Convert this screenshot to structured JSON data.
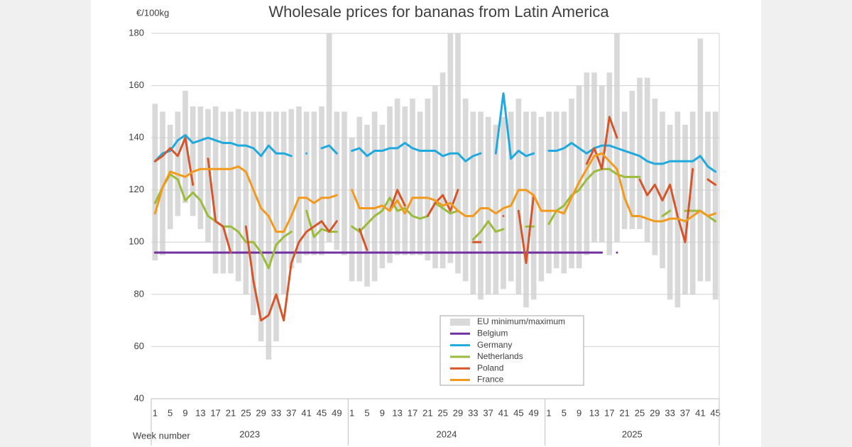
{
  "chart_data": {
    "type": "line",
    "title": "Wholesale prices for bananas from Latin America",
    "y_label": "€/100kg",
    "x_label": "Week number",
    "years": [
      "2023",
      "2024",
      "2025"
    ],
    "categories": [
      1,
      null,
      5,
      null,
      9,
      null,
      13,
      null,
      17,
      null,
      21,
      null,
      25,
      null,
      29,
      null,
      33,
      null,
      37,
      null,
      41,
      null,
      45,
      null,
      49,
      null,
      1,
      null,
      5,
      null,
      9,
      null,
      13,
      null,
      17,
      null,
      21,
      null,
      25,
      null,
      29,
      null,
      33,
      null,
      37,
      null,
      41,
      null,
      45,
      null,
      49,
      null,
      1,
      null,
      5,
      null,
      9,
      null,
      13,
      null,
      17,
      null,
      21,
      null,
      25,
      null,
      29,
      null,
      33,
      null,
      37,
      null,
      41,
      null,
      45
    ],
    "ylim": [
      40,
      180
    ],
    "yticks": [
      40,
      60,
      80,
      100,
      120,
      140,
      160,
      180
    ],
    "grid": true,
    "legend": "lower-center",
    "series": [
      {
        "name": "EU minimum/maximum",
        "color": "#d9d9d9",
        "low": [
          93,
          95,
          105,
          110,
          115,
          110,
          105,
          100,
          88,
          88,
          88,
          85,
          80,
          72,
          62,
          55,
          62,
          80,
          90,
          92,
          95,
          95,
          95,
          100,
          97,
          95,
          85,
          85,
          83,
          85,
          90,
          92,
          95,
          95,
          95,
          95,
          93,
          90,
          90,
          92,
          88,
          85,
          80,
          78,
          80,
          80,
          82,
          85,
          80,
          75,
          78,
          85,
          88,
          90,
          88,
          90,
          90,
          95,
          100,
          100,
          95,
          100,
          105,
          105,
          105,
          100,
          95,
          90,
          78,
          75,
          80,
          80,
          85,
          85,
          78
        ],
        "high": [
          153,
          150,
          145,
          150,
          158,
          152,
          152,
          151,
          152,
          150,
          150,
          151,
          150,
          150,
          150,
          150,
          150,
          150,
          151,
          152,
          150,
          150,
          152,
          180,
          150,
          150,
          140,
          148,
          145,
          150,
          145,
          152,
          155,
          152,
          155,
          150,
          155,
          160,
          165,
          180,
          180,
          155,
          150,
          150,
          148,
          145,
          148,
          150,
          155,
          150,
          150,
          148,
          150,
          150,
          150,
          155,
          160,
          165,
          165,
          160,
          165,
          180,
          150,
          158,
          163,
          163,
          155,
          150,
          145,
          150,
          145,
          150,
          178,
          150,
          150
        ]
      },
      {
        "name": "Belgium",
        "color": "#7030a0",
        "values": [
          96,
          96,
          96,
          96,
          96,
          96,
          96,
          96,
          96,
          96,
          96,
          96,
          96,
          96,
          96,
          96,
          96,
          96,
          96,
          96,
          96,
          96,
          96,
          96,
          96,
          96,
          96,
          96,
          96,
          96,
          96,
          96,
          96,
          96,
          96,
          96,
          96,
          96,
          96,
          96,
          96,
          96,
          96,
          96,
          96,
          96,
          96,
          96,
          96,
          96,
          96,
          96,
          96,
          96,
          96,
          96,
          96,
          96,
          96,
          96,
          null,
          96,
          null,
          null,
          null,
          null,
          null,
          null,
          null,
          null,
          null,
          null,
          null,
          null,
          null
        ]
      },
      {
        "name": "Germany",
        "color": "#1ea9df",
        "values": [
          131,
          134,
          135,
          139,
          141,
          138,
          139,
          140,
          139,
          138,
          138,
          137,
          137,
          136,
          133,
          137,
          134,
          134,
          133,
          null,
          134,
          null,
          136,
          137,
          134,
          null,
          135,
          136,
          133,
          135,
          135,
          136,
          136,
          138,
          136,
          135,
          135,
          135,
          133,
          134,
          134,
          131,
          133,
          134,
          null,
          134,
          157,
          132,
          135,
          133,
          134,
          null,
          135,
          135,
          136,
          138,
          136,
          134,
          136,
          137,
          137,
          136,
          135,
          134,
          133,
          131,
          130,
          130,
          131,
          131,
          131,
          131,
          133,
          129,
          127
        ]
      },
      {
        "name": "Netherlands",
        "color": "#9bbb3b",
        "values": [
          115,
          121,
          126,
          124,
          116,
          119,
          116,
          110,
          108,
          106,
          106,
          104,
          100,
          100,
          96,
          90,
          99,
          102,
          104,
          null,
          112,
          102,
          105,
          104,
          104,
          null,
          106,
          104,
          107,
          110,
          112,
          117,
          112,
          113,
          110,
          109,
          110,
          115,
          113,
          111,
          112,
          null,
          101,
          104,
          108,
          104,
          105,
          null,
          null,
          106,
          106,
          null,
          107,
          112,
          114,
          118,
          120,
          124,
          127,
          128,
          128,
          126,
          125,
          125,
          125,
          null,
          null,
          110,
          112,
          null,
          112,
          112,
          112,
          110,
          108
        ]
      },
      {
        "name": "Poland",
        "color": "#d6562b",
        "values": [
          131,
          133,
          136,
          133,
          140,
          122,
          null,
          132,
          108,
          106,
          96,
          null,
          106,
          85,
          70,
          72,
          80,
          70,
          92,
          100,
          104,
          106,
          108,
          104,
          108,
          null,
          null,
          105,
          97,
          null,
          null,
          112,
          120,
          114,
          null,
          null,
          110,
          115,
          118,
          112,
          120,
          null,
          100,
          100,
          null,
          null,
          110,
          null,
          112,
          92,
          118,
          null,
          null,
          null,
          null,
          null,
          null,
          130,
          136,
          128,
          148,
          140,
          null,
          null,
          124,
          118,
          122,
          116,
          122,
          110,
          100,
          128,
          null,
          124,
          122
        ]
      },
      {
        "name": "France",
        "color": "#f39a1c",
        "values": [
          111,
          121,
          127,
          126,
          125,
          127,
          128,
          128,
          128,
          128,
          128,
          129,
          127,
          120,
          113,
          110,
          104,
          104,
          110,
          117,
          117,
          115,
          117,
          117,
          118,
          null,
          120,
          113,
          113,
          113,
          114,
          112,
          116,
          111,
          117,
          117,
          117,
          116,
          114,
          115,
          112,
          110,
          110,
          113,
          113,
          111,
          113,
          114,
          120,
          120,
          118,
          112,
          112,
          112,
          111,
          117,
          123,
          128,
          133,
          134,
          131,
          128,
          117,
          110,
          110,
          109,
          108,
          108,
          109,
          109,
          108,
          110,
          112,
          110,
          111
        ]
      }
    ]
  }
}
